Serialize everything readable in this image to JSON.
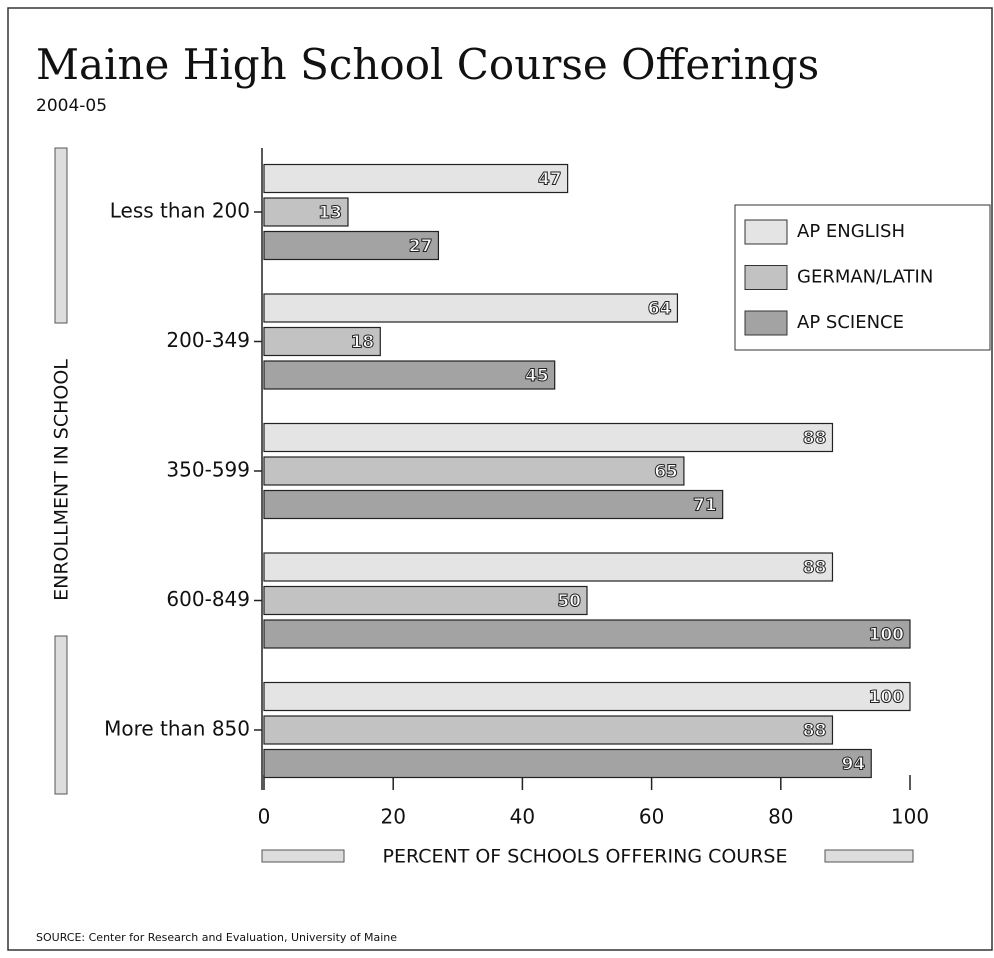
{
  "chart_data": {
    "type": "bar",
    "orientation": "horizontal",
    "title": "Maine High School Course Offerings",
    "subtitle": "2004-05",
    "x_label": "PERCENT OF SCHOOLS OFFERING COURSE",
    "y_label": "ENROLLMENT IN SCHOOL",
    "source": "SOURCE: Center for Research and Evaluation, University of Maine",
    "categories": [
      "Less than 200",
      "200-349",
      "350-599",
      "600-849",
      "More than 850"
    ],
    "series": [
      {
        "name": "AP ENGLISH",
        "color": "#e4e4e4",
        "values": [
          47,
          64,
          88,
          88,
          100
        ]
      },
      {
        "name": "GERMAN/LATIN",
        "color": "#c2c2c2",
        "values": [
          13,
          18,
          65,
          50,
          88
        ]
      },
      {
        "name": "AP SCIENCE",
        "color": "#a3a3a3",
        "values": [
          27,
          45,
          71,
          100,
          94
        ]
      }
    ],
    "xlim": [
      0,
      100
    ],
    "xticks": [
      0,
      20,
      40,
      60,
      80,
      100
    ],
    "legend": "upper right"
  }
}
